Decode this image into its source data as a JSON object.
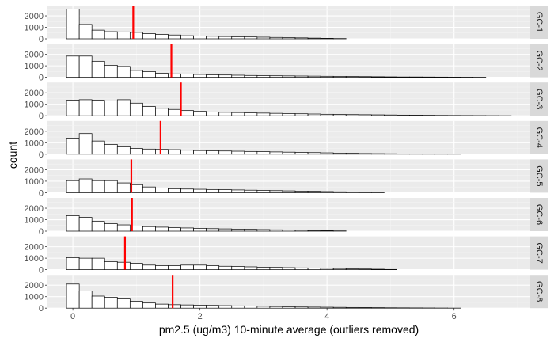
{
  "chart_data": {
    "type": "histogram",
    "layout": "faceted-vertical",
    "xlabel": "pm2.5 (ug/m3) 10-minute average (outliers removed)",
    "ylabel": "count",
    "xlim": [
      -0.4,
      7.2
    ],
    "ylim": [
      0,
      2900
    ],
    "x_ticks": [
      0,
      2,
      4,
      6
    ],
    "y_ticks": [
      0,
      1000,
      2000
    ],
    "bin_width": 0.2,
    "bin_start": -0.1,
    "grid": true,
    "background": "#ebebeb",
    "strip_background": "#d9d9d9",
    "bar_fill": "#ffffff",
    "bar_outline": "#000000",
    "median_line_color": "#ff0000",
    "facets": [
      {
        "label": "GC-1",
        "median": 0.95,
        "counts": [
          2600,
          1250,
          750,
          620,
          600,
          560,
          450,
          380,
          330,
          270,
          240,
          220,
          200,
          180,
          160,
          140,
          120,
          100,
          80,
          60,
          40,
          20,
          0,
          0,
          0,
          0,
          0,
          0,
          0,
          0,
          0,
          0,
          0,
          0,
          0
        ]
      },
      {
        "label": "GC-2",
        "median": 1.55,
        "counts": [
          1850,
          1850,
          1400,
          1050,
          950,
          600,
          500,
          350,
          300,
          280,
          250,
          220,
          200,
          180,
          160,
          140,
          130,
          120,
          110,
          100,
          90,
          80,
          70,
          60,
          50,
          40,
          30,
          30,
          25,
          20,
          15,
          10,
          5,
          0,
          0
        ]
      },
      {
        "label": "GC-3",
        "median": 1.7,
        "counts": [
          1350,
          1400,
          1350,
          1300,
          1400,
          1100,
          800,
          650,
          550,
          450,
          380,
          320,
          300,
          280,
          250,
          230,
          210,
          190,
          170,
          150,
          130,
          110,
          100,
          90,
          80,
          70,
          60,
          50,
          40,
          30,
          25,
          20,
          15,
          10,
          5
        ]
      },
      {
        "label": "GC-4",
        "median": 1.38,
        "counts": [
          1400,
          1800,
          1150,
          850,
          650,
          500,
          450,
          420,
          400,
          350,
          320,
          300,
          280,
          260,
          240,
          220,
          200,
          180,
          160,
          140,
          120,
          100,
          80,
          60,
          50,
          40,
          30,
          20,
          15,
          10,
          5,
          0,
          0,
          0,
          0
        ]
      },
      {
        "label": "GC-5",
        "median": 0.92,
        "counts": [
          1050,
          1200,
          1050,
          1050,
          850,
          700,
          500,
          400,
          350,
          320,
          300,
          280,
          260,
          240,
          220,
          200,
          180,
          160,
          140,
          120,
          100,
          80,
          60,
          40,
          20,
          0,
          0,
          0,
          0,
          0,
          0,
          0,
          0,
          0,
          0
        ]
      },
      {
        "label": "GC-6",
        "median": 0.93,
        "counts": [
          1350,
          1200,
          850,
          650,
          550,
          450,
          400,
          350,
          300,
          280,
          250,
          220,
          200,
          180,
          160,
          140,
          120,
          100,
          80,
          60,
          40,
          20,
          0,
          0,
          0,
          0,
          0,
          0,
          0,
          0,
          0,
          0,
          0,
          0,
          0
        ]
      },
      {
        "label": "GC-7",
        "median": 0.82,
        "counts": [
          1050,
          1000,
          1000,
          700,
          650,
          550,
          400,
          350,
          350,
          400,
          400,
          350,
          300,
          280,
          250,
          220,
          200,
          180,
          160,
          140,
          120,
          100,
          80,
          60,
          40,
          20,
          0,
          0,
          0,
          0,
          0,
          0,
          0,
          0,
          0
        ]
      },
      {
        "label": "GC-8",
        "median": 1.57,
        "counts": [
          2100,
          1500,
          1050,
          950,
          800,
          600,
          450,
          350,
          300,
          280,
          260,
          240,
          220,
          200,
          180,
          160,
          140,
          120,
          100,
          90,
          80,
          70,
          60,
          50,
          40,
          30,
          25,
          20,
          15,
          10,
          5,
          0,
          0,
          0,
          0
        ]
      }
    ]
  }
}
